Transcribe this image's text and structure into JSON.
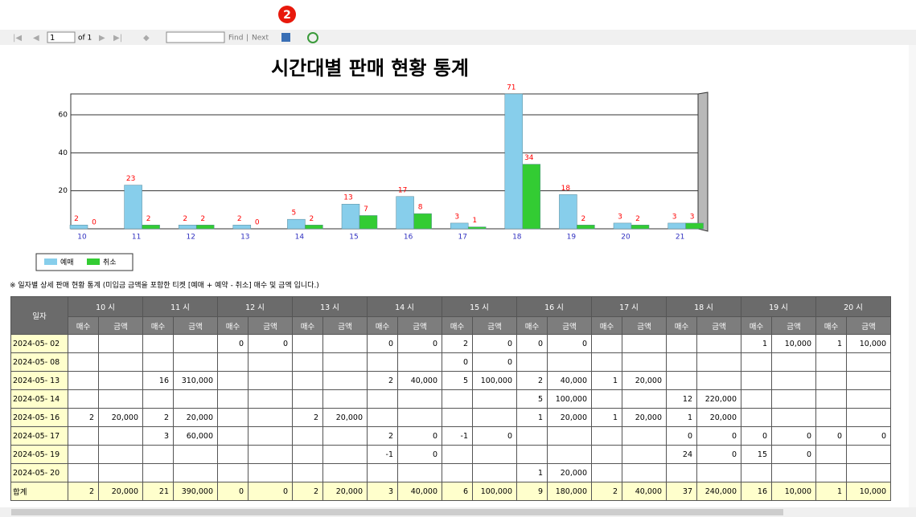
{
  "badge": "2",
  "toolbar": {
    "page": "1",
    "of": "of 1",
    "find": "Find",
    "separator": "|",
    "next": "Next"
  },
  "chart_data": {
    "type": "bar",
    "title": "시간대별 판매 현황 통계",
    "categories": [
      "10",
      "11",
      "12",
      "13",
      "14",
      "15",
      "16",
      "17",
      "18",
      "19",
      "20",
      "21"
    ],
    "series": [
      {
        "name": "예매",
        "color": "#87ceeb",
        "values": [
          2,
          23,
          2,
          2,
          5,
          13,
          17,
          3,
          71,
          18,
          3,
          3
        ]
      },
      {
        "name": "취소",
        "color": "#33cc33",
        "values": [
          0,
          2,
          2,
          0,
          2,
          7,
          8,
          1,
          34,
          2,
          2,
          3
        ]
      }
    ],
    "ylim": [
      0,
      71
    ],
    "yticks": [
      20,
      40,
      60
    ],
    "grid": true,
    "value_label_color": "#ff0000"
  },
  "note": "※ 일자별 상세 판매 현황 통계 (미입금 금액을 포함한 티켓 [예매 + 예약 - 취소] 매수 및 금액 입니다.)",
  "table": {
    "date_header": "일자",
    "hours": [
      "10 시",
      "11 시",
      "12 시",
      "13 시",
      "14 시",
      "15 시",
      "16 시",
      "17 시",
      "18 시",
      "19 시",
      "20 시"
    ],
    "sub_headers": [
      "매수",
      "금액"
    ],
    "rows": [
      {
        "date": "2024-05- 02",
        "cells": [
          null,
          null,
          null,
          null,
          "0",
          "0",
          null,
          null,
          "0",
          "0",
          "2",
          "0",
          "0",
          "0",
          null,
          null,
          null,
          null,
          "1",
          "10,000",
          "1",
          "10,000"
        ]
      },
      {
        "date": "2024-05- 08",
        "cells": [
          null,
          null,
          null,
          null,
          null,
          null,
          null,
          null,
          null,
          null,
          "0",
          "0",
          null,
          null,
          null,
          null,
          null,
          null,
          null,
          null,
          null,
          null
        ]
      },
      {
        "date": "2024-05- 13",
        "cells": [
          null,
          null,
          "16",
          "310,000",
          null,
          null,
          null,
          null,
          "2",
          "40,000",
          "5",
          "100,000",
          "2",
          "40,000",
          "1",
          "20,000",
          null,
          null,
          null,
          null,
          null,
          null
        ]
      },
      {
        "date": "2024-05- 14",
        "cells": [
          null,
          null,
          null,
          null,
          null,
          null,
          null,
          null,
          null,
          null,
          null,
          null,
          "5",
          "100,000",
          null,
          null,
          "12",
          "220,000",
          null,
          null,
          null,
          null
        ]
      },
      {
        "date": "2024-05- 16",
        "cells": [
          "2",
          "20,000",
          "2",
          "20,000",
          null,
          null,
          "2",
          "20,000",
          null,
          null,
          null,
          null,
          "1",
          "20,000",
          "1",
          "20,000",
          "1",
          "20,000",
          null,
          null,
          null,
          null
        ]
      },
      {
        "date": "2024-05- 17",
        "cells": [
          null,
          null,
          "3",
          "60,000",
          null,
          null,
          null,
          null,
          "2",
          "0",
          "-1",
          "0",
          null,
          null,
          null,
          null,
          "0",
          "0",
          "0",
          "0",
          "0",
          "0"
        ]
      },
      {
        "date": "2024-05- 19",
        "cells": [
          null,
          null,
          null,
          null,
          null,
          null,
          null,
          null,
          "-1",
          "0",
          null,
          null,
          null,
          null,
          null,
          null,
          "24",
          "0",
          "15",
          "0",
          null,
          null
        ]
      },
      {
        "date": "2024-05- 20",
        "cells": [
          null,
          null,
          null,
          null,
          null,
          null,
          null,
          null,
          null,
          null,
          null,
          null,
          "1",
          "20,000",
          null,
          null,
          null,
          null,
          null,
          null,
          null,
          null
        ]
      }
    ],
    "total": {
      "label": "합계",
      "cells": [
        "2",
        "20,000",
        "21",
        "390,000",
        "0",
        "0",
        "2",
        "20,000",
        "3",
        "40,000",
        "6",
        "100,000",
        "9",
        "180,000",
        "2",
        "40,000",
        "37",
        "240,000",
        "16",
        "10,000",
        "1",
        "10,000"
      ]
    }
  }
}
